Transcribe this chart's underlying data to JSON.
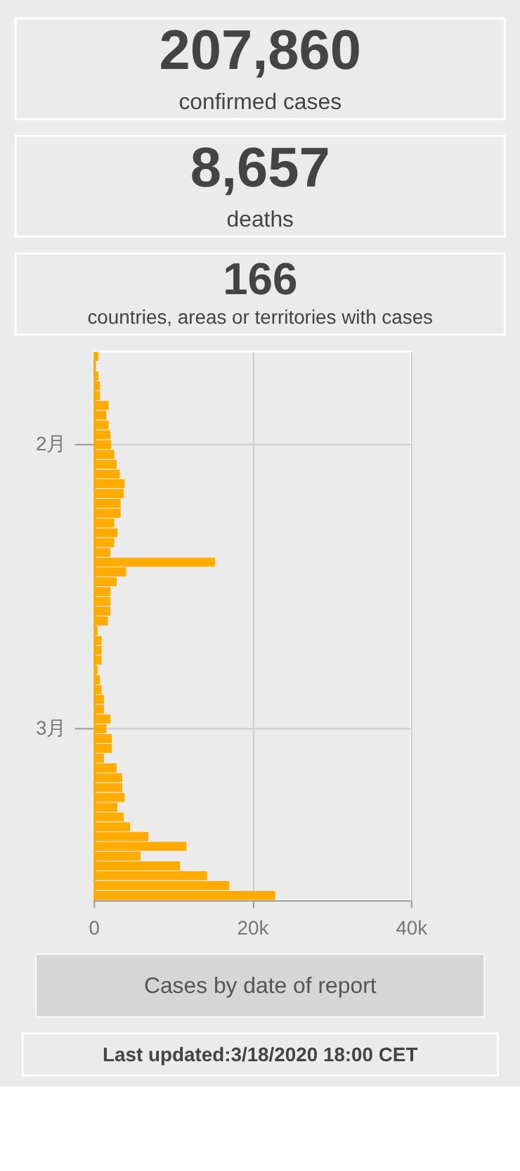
{
  "chart_data": [
    {
      "type": "other",
      "title": "207,860",
      "subtitle": "confirmed cases"
    },
    {
      "type": "other",
      "title": "8,657",
      "subtitle": "deaths"
    },
    {
      "type": "other",
      "title": "166",
      "subtitle": "countries, areas or territories with cases"
    },
    {
      "type": "bar",
      "orientation": "horizontal",
      "color": "#ffab00",
      "categories": [
        null,
        null,
        null,
        null,
        null,
        null,
        null,
        null,
        null,
        "2月",
        null,
        null,
        null,
        null,
        null,
        null,
        null,
        null,
        null,
        null,
        null,
        null,
        null,
        null,
        null,
        null,
        null,
        null,
        null,
        null,
        null,
        null,
        null,
        null,
        null,
        null,
        null,
        null,
        "3月",
        null,
        null,
        null,
        null,
        null,
        null,
        null,
        null,
        null,
        null,
        null,
        null,
        null,
        null,
        null,
        null,
        null
      ],
      "values": [
        600,
        300,
        600,
        800,
        800,
        1900,
        1600,
        1900,
        2100,
        2200,
        2600,
        2900,
        3300,
        3900,
        3800,
        3400,
        3400,
        2600,
        3000,
        2600,
        2100,
        15300,
        4100,
        2900,
        2100,
        2100,
        2100,
        1800,
        500,
        1000,
        1000,
        1000,
        500,
        800,
        1000,
        1300,
        1300,
        2100,
        1600,
        2300,
        2300,
        1300,
        2900,
        3600,
        3600,
        3900,
        3000,
        3800,
        4600,
        6900,
        11700,
        5900,
        10900,
        14300,
        17100,
        22900
      ],
      "xlim": [
        0,
        40000
      ],
      "xticks": [
        {
          "value": 0,
          "label": "0"
        },
        {
          "value": 20000,
          "label": "20k"
        },
        {
          "value": 40000,
          "label": "40k"
        }
      ],
      "grid": true,
      "annotations": [
        "Cases by date of report",
        "Last updated:3/18/2020 18:00 CET"
      ]
    }
  ]
}
